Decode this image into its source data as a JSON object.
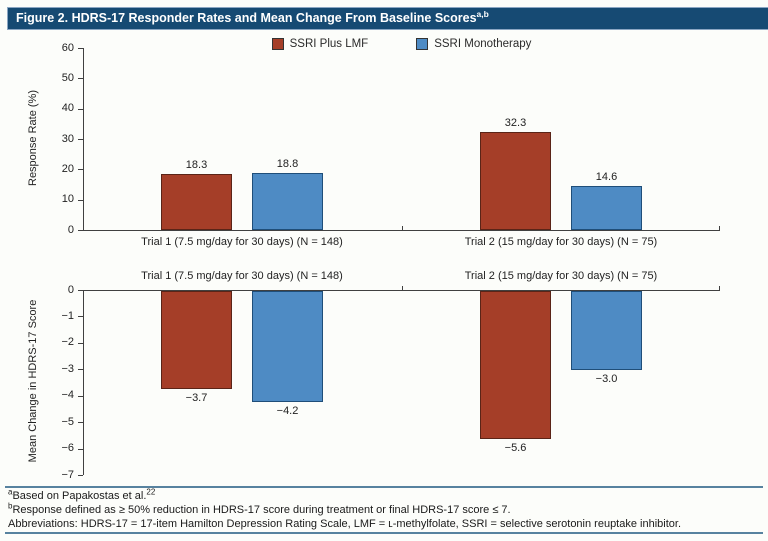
{
  "header": {
    "title": "Figure 2. HDRS-17 Responder Rates and Mean Change From Baseline Scores",
    "superscript": "a,b"
  },
  "legend": [
    {
      "label": "SSRI Plus LMF",
      "color": "#a53e28"
    },
    {
      "label": "SSRI Monotherapy",
      "color": "#4e8bc4"
    }
  ],
  "colors": {
    "header_bg": "#164a73",
    "header_border": "#8ba6c3",
    "separator_rule": "#57829f",
    "axis": "#404040",
    "ssri_plus_lmf_bar": "#a53e28",
    "ssri_monotherapy_bar": "#4e8bc4"
  },
  "chart_data": [
    {
      "type": "bar",
      "ylabel": "Response Rate (%)",
      "categories": [
        "Trial 1 (7.5 mg/day for 30 days) (N = 148)",
        "Trial 2 (15 mg/day for 30 days) (N = 75)"
      ],
      "series": [
        {
          "name": "SSRI Plus LMF",
          "values": [
            18.3,
            32.3
          ],
          "color": "#a53e28",
          "border": "#5a2417"
        },
        {
          "name": "SSRI Monotherapy",
          "values": [
            18.8,
            14.6
          ],
          "color": "#4e8bc4",
          "border": "#1f4e79"
        }
      ],
      "ylim": [
        0,
        60
      ],
      "yticks": [
        0,
        10,
        20,
        30,
        40,
        50,
        60
      ],
      "grid": false,
      "legend_position": "top-center",
      "category_label_position": "below-axis"
    },
    {
      "type": "bar",
      "ylabel": "Mean Change in HDRS-17 Score",
      "categories": [
        "Trial 1 (7.5 mg/day for 30 days) (N = 148)",
        "Trial 2 (15 mg/day for 30 days) (N = 75)"
      ],
      "series": [
        {
          "name": "SSRI Plus LMF",
          "values": [
            -3.7,
            -5.6
          ],
          "color": "#a53e28",
          "border": "#5a2417"
        },
        {
          "name": "SSRI Monotherapy",
          "values": [
            -4.2,
            -3.0
          ],
          "color": "#4e8bc4",
          "border": "#1f4e79"
        }
      ],
      "ylim": [
        -7,
        0
      ],
      "yticks": [
        0,
        -1,
        -2,
        -3,
        -4,
        -5,
        -6,
        -7
      ],
      "grid": false,
      "category_label_position": "above-axis"
    }
  ],
  "footnotes": {
    "a_marker": "a",
    "a_text": "Based on Papakostas et al.",
    "a_ref": "22",
    "b_marker": "b",
    "b_text": "Response defined as ≥ 50% reduction in HDRS-17 score during treatment or final HDRS-17 score ≤ 7.",
    "abbrev_text": "Abbreviations: HDRS-17 = 17-item Hamilton Depression Rating Scale, LMF = ʟ-methylfolate, SSRI = selective serotonin reuptake inhibitor."
  }
}
